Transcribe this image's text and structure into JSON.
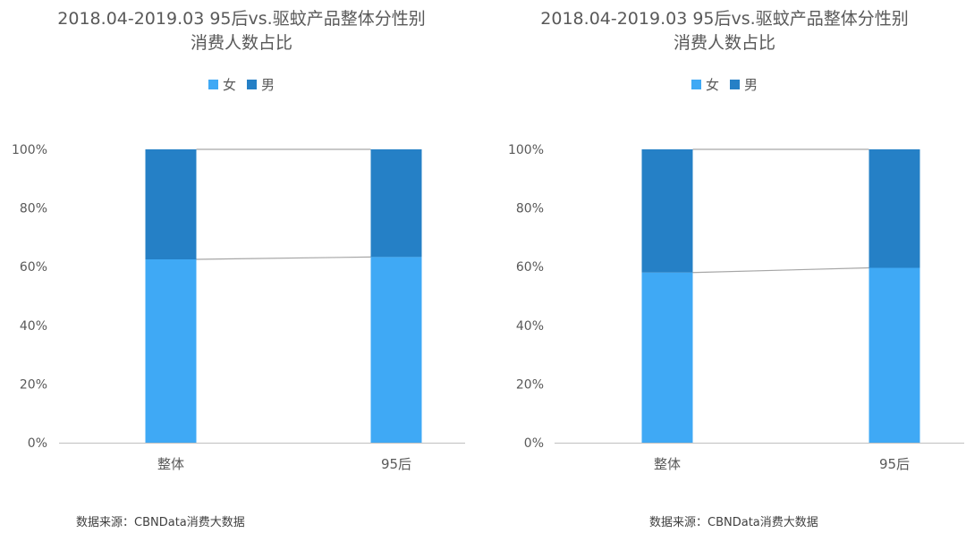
{
  "colors": {
    "female": "#3fa9f5",
    "male": "#2580c6",
    "axis": "#bfbfbf",
    "connector": "#a6a6a6"
  },
  "chart_data": [
    {
      "type": "bar",
      "stacked": "percent",
      "title": "2018.04-2019.03 95后vs.驱蚊产品整体分性别",
      "title_line2": "消费人数占比",
      "categories": [
        "整体",
        "95后"
      ],
      "series": [
        {
          "name": "女",
          "values": [
            62.5,
            63.3
          ]
        },
        {
          "name": "男",
          "values": [
            37.5,
            36.7
          ]
        }
      ],
      "yticks": [
        "0%",
        "20%",
        "40%",
        "60%",
        "80%",
        "100%"
      ],
      "ylim": [
        0,
        100
      ],
      "legend_position": "top",
      "grid": false,
      "source": "数据来源：CBNData消费大数据"
    },
    {
      "type": "bar",
      "stacked": "percent",
      "title": "2018.04-2019.03 95后vs.驱蚊产品整体分性别",
      "title_line2": "消费人数占比",
      "categories": [
        "整体",
        "95后"
      ],
      "series": [
        {
          "name": "女",
          "values": [
            58.0,
            59.6
          ]
        },
        {
          "name": "男",
          "values": [
            42.0,
            40.4
          ]
        }
      ],
      "yticks": [
        "0%",
        "20%",
        "40%",
        "60%",
        "80%",
        "100%"
      ],
      "ylim": [
        0,
        100
      ],
      "legend_position": "top",
      "grid": false,
      "source": "数据来源：CBNData消费大数据"
    }
  ]
}
